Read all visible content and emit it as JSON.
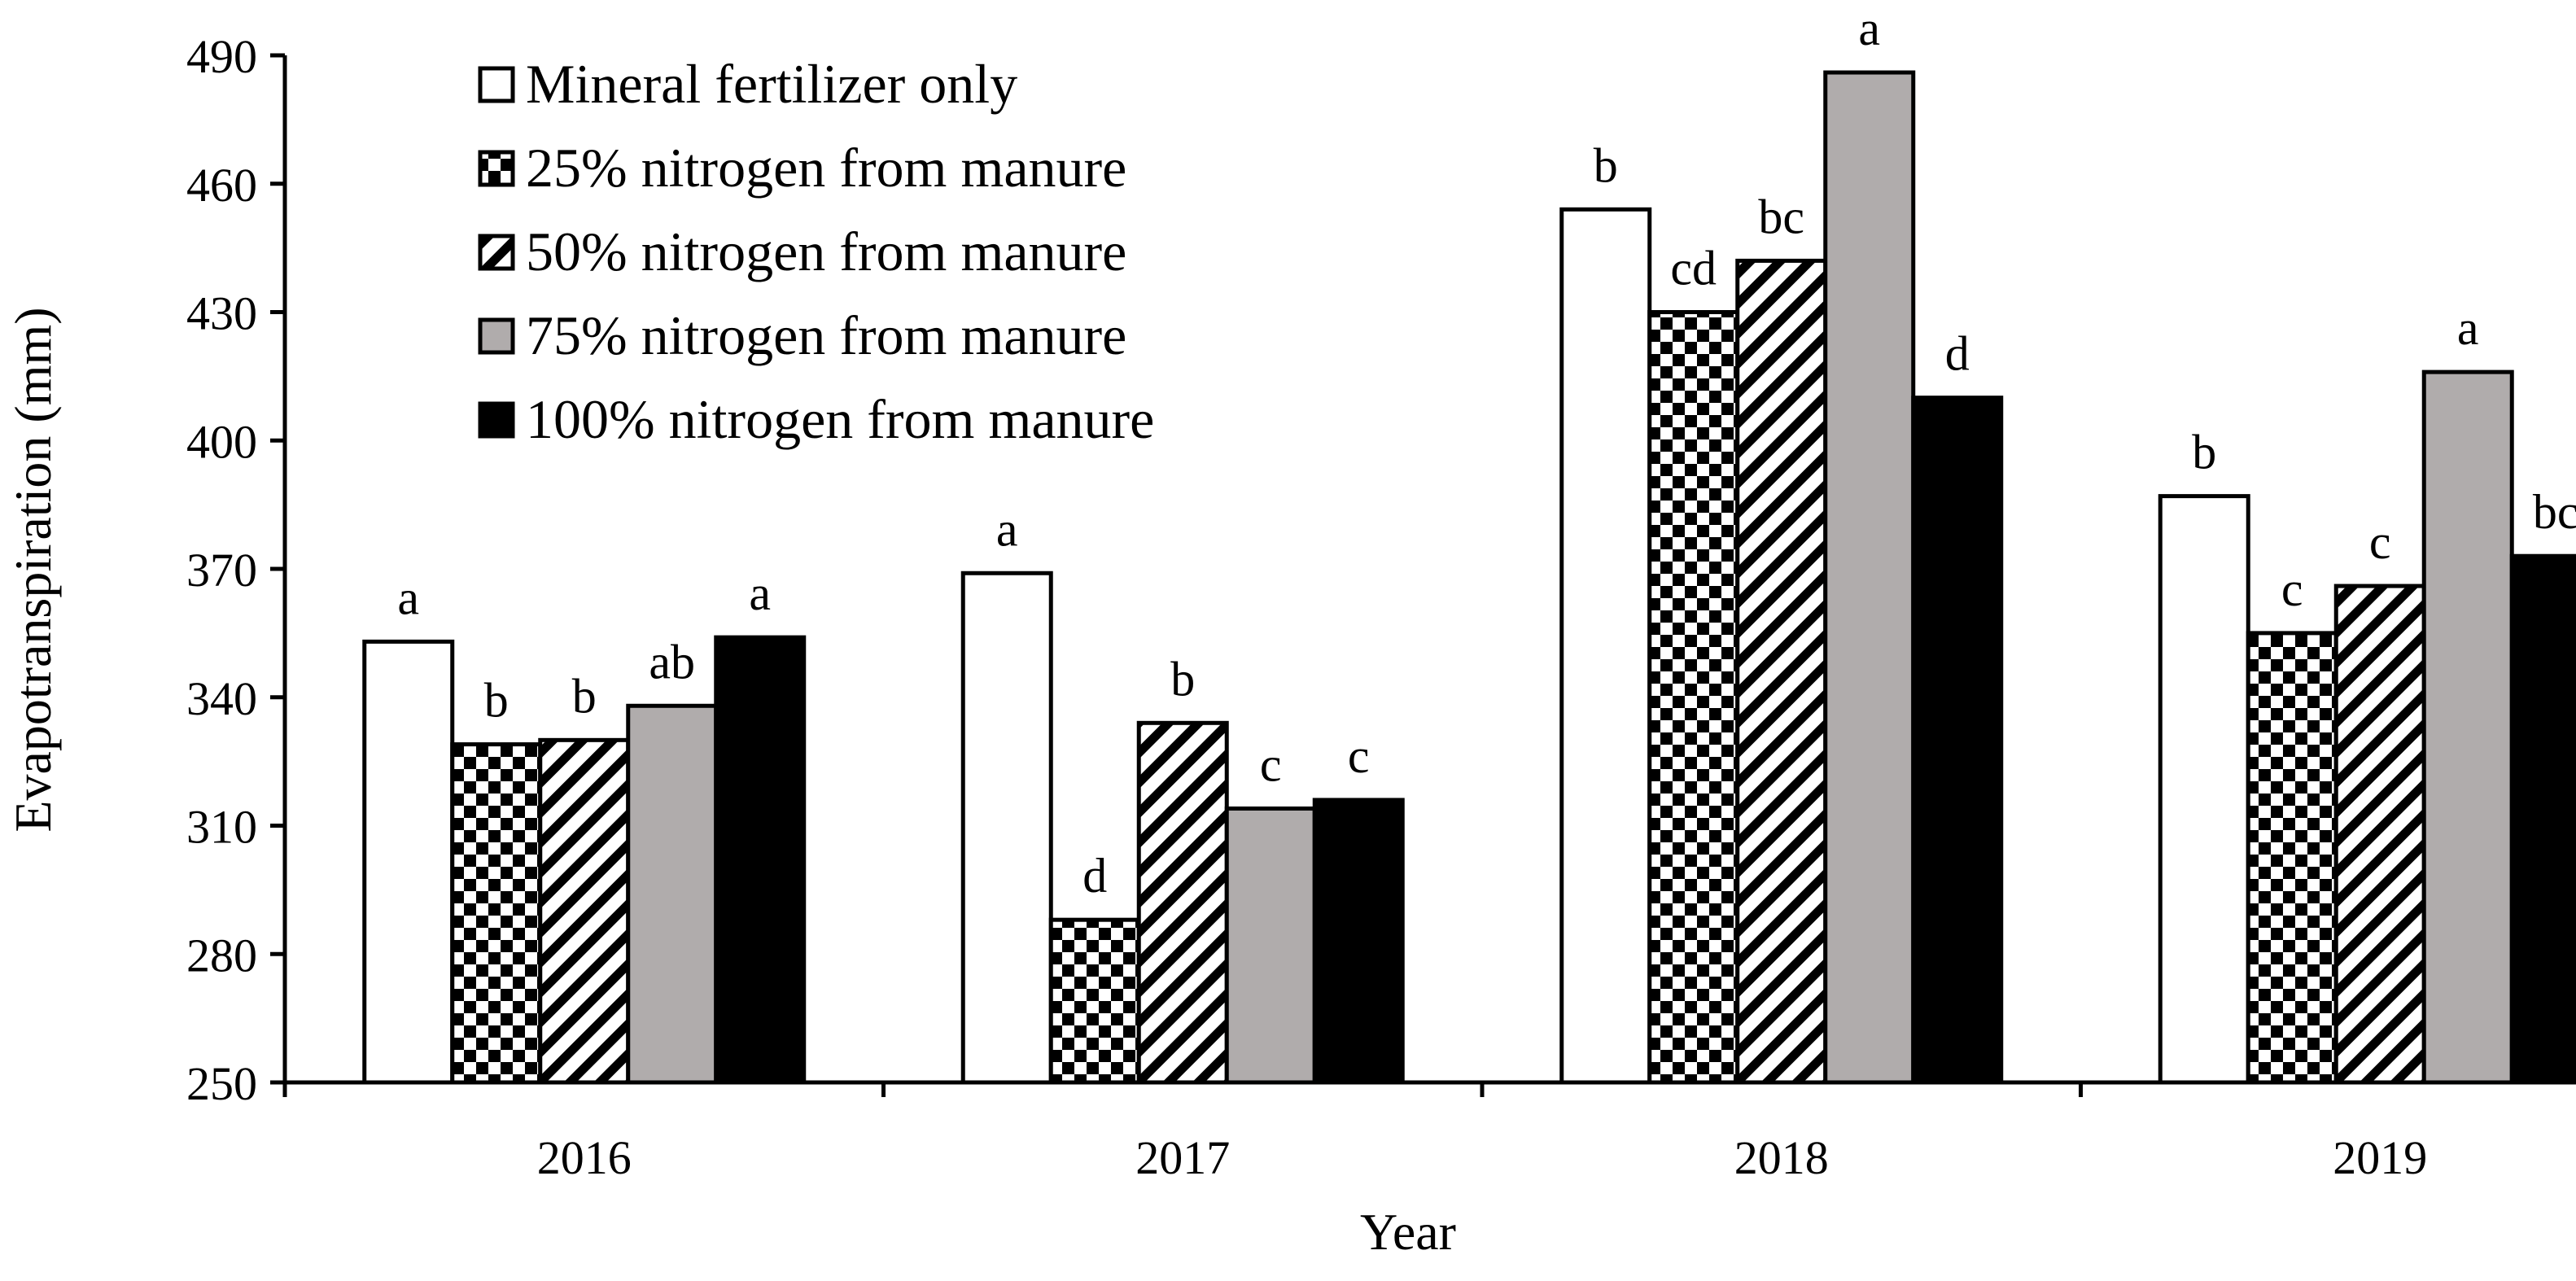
{
  "chart_data": {
    "type": "bar",
    "title": "",
    "xlabel": "Year",
    "ylabel": "Evapotranspiration (mm)",
    "ylim": [
      250,
      490
    ],
    "yticks": [
      250,
      280,
      310,
      340,
      370,
      400,
      430,
      460,
      490
    ],
    "categories": [
      "2016",
      "2017",
      "2018",
      "2019"
    ],
    "legend_position": "top-left",
    "series": [
      {
        "name": "Mineral fertilizer only",
        "pattern": "white",
        "values": [
          353,
          369,
          454,
          387
        ],
        "significance": [
          "a",
          "a",
          "b",
          "b"
        ]
      },
      {
        "name": "25% nitrogen from manure",
        "pattern": "checker",
        "values": [
          329,
          288,
          430,
          355
        ],
        "significance": [
          "b",
          "d",
          "cd",
          "c"
        ]
      },
      {
        "name": "50% nitrogen from manure",
        "pattern": "diagonal",
        "values": [
          330,
          334,
          442,
          366
        ],
        "significance": [
          "b",
          "b",
          "bc",
          "c"
        ]
      },
      {
        "name": "75% nitrogen from manure",
        "pattern": "gray",
        "values": [
          338,
          314,
          486,
          416
        ],
        "significance": [
          "ab",
          "c",
          "a",
          "a"
        ]
      },
      {
        "name": "100% nitrogen from manure",
        "pattern": "black",
        "values": [
          354,
          316,
          410,
          373
        ],
        "significance": [
          "a",
          "c",
          "d",
          "bc"
        ]
      }
    ],
    "colors": {
      "axis": "#000000",
      "gray_fill": "#b0acac",
      "black_fill": "#000000",
      "white_fill": "#ffffff"
    }
  }
}
